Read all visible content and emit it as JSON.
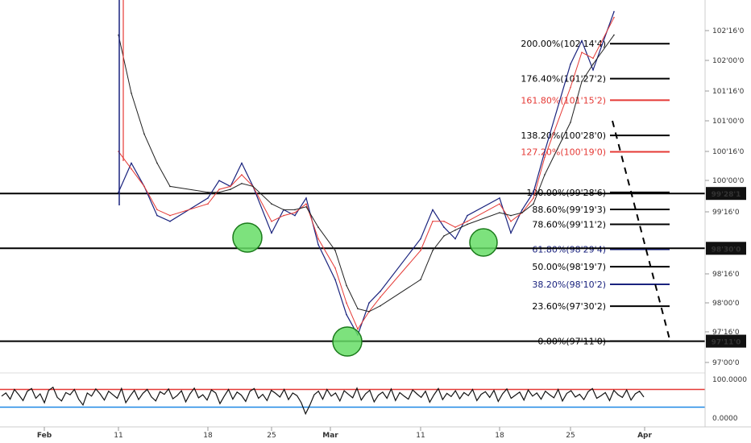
{
  "chart_data": {
    "type": "line",
    "title": "",
    "price_axis": {
      "ticks": [
        "102'16'0",
        "102'00'0",
        "101'16'0",
        "101'00'0",
        "100'16'0",
        "100'00'0",
        "99'16'0",
        "98'16'0",
        "98'00'0",
        "97'16'0",
        "97'00'0"
      ],
      "ylim": [
        96.84,
        103.2
      ]
    },
    "x_axis": {
      "ticks": [
        "Feb",
        "11",
        "18",
        "25",
        "Mar",
        "11",
        "18",
        "25",
        "Apr"
      ]
    },
    "horizontal_levels": [
      {
        "price": 99.879,
        "label": "99'28'1"
      },
      {
        "price": 98.9375,
        "label": "98'30'0"
      },
      {
        "price": 97.34375,
        "label": "97'11'0"
      }
    ],
    "fibonacci": [
      {
        "label": "200.00%(102'14'4)",
        "price": 102.45,
        "color": "#000000"
      },
      {
        "label": "176.40%(101'27'2)",
        "price": 101.85,
        "color": "#000000"
      },
      {
        "label": "161.80%(101'15'2)",
        "price": 101.48,
        "color": "#e53935"
      },
      {
        "label": "138.20%(100'28'0)",
        "price": 100.875,
        "color": "#000000"
      },
      {
        "label": "127.20%(100'19'0)",
        "price": 100.594,
        "color": "#e53935"
      },
      {
        "label": "100.00%(99'28'6)",
        "price": 99.898,
        "color": "#000000"
      },
      {
        "label": "88.60%(99'19'3)",
        "price": 99.605,
        "color": "#000000"
      },
      {
        "label": "78.60%(99'11'2)",
        "price": 99.35,
        "color": "#000000"
      },
      {
        "label": "61.80%(98'29'4)",
        "price": 98.92,
        "color": "#1a237e"
      },
      {
        "label": "50.00%(98'19'7)",
        "price": 98.621,
        "color": "#000000"
      },
      {
        "label": "38.20%(98'10'2)",
        "price": 98.32,
        "color": "#1a237e"
      },
      {
        "label": "23.60%(97'30'2)",
        "price": 97.945,
        "color": "#000000"
      },
      {
        "label": "0.00%(97'11'0)",
        "price": 97.344,
        "color": "#000000"
      }
    ],
    "series": [
      {
        "color": "#1a237e",
        "points": [
          [
            "Feb 11",
            99.9
          ],
          [
            "Feb 12",
            100.4
          ],
          [
            "Feb 13",
            100.0
          ],
          [
            "Feb 14",
            99.5
          ],
          [
            "Feb 15",
            99.4
          ],
          [
            "Feb 18",
            99.8
          ],
          [
            "Feb 19",
            100.1
          ],
          [
            "Feb 20",
            100.0
          ],
          [
            "Feb 21",
            100.4
          ],
          [
            "Feb 22",
            100.0
          ],
          [
            "Feb 25",
            99.2
          ],
          [
            "Feb 26",
            99.6
          ],
          [
            "Feb 27",
            99.5
          ],
          [
            "Feb 28",
            99.8
          ],
          [
            "Mar 01",
            99.0
          ],
          [
            "Mar 04",
            98.4
          ],
          [
            "Mar 05",
            97.8
          ],
          [
            "Mar 06",
            97.45
          ],
          [
            "Mar 07",
            98.0
          ],
          [
            "Mar 08",
            98.2
          ],
          [
            "Mar 11",
            99.1
          ],
          [
            "Mar 12",
            99.6
          ],
          [
            "Mar 13",
            99.3
          ],
          [
            "Mar 14",
            99.1
          ],
          [
            "Mar 15",
            99.5
          ],
          [
            "Mar 18",
            99.8
          ],
          [
            "Mar 19",
            99.2
          ],
          [
            "Mar 20",
            99.6
          ],
          [
            "Mar 21",
            99.9
          ],
          [
            "Mar 22",
            100.6
          ],
          [
            "Mar 25",
            102.1
          ],
          [
            "Mar 26",
            102.5
          ],
          [
            "Mar 27",
            102.0
          ],
          [
            "Mar 28",
            103.0
          ]
        ]
      },
      {
        "color": "#e53935",
        "points": [
          [
            "Feb 11",
            100.6
          ],
          [
            "Feb 12",
            100.3
          ],
          [
            "Feb 13",
            100.0
          ],
          [
            "Feb 14",
            99.6
          ],
          [
            "Feb 15",
            99.5
          ],
          [
            "Feb 18",
            99.7
          ],
          [
            "Feb 19",
            99.95
          ],
          [
            "Feb 20",
            100.0
          ],
          [
            "Feb 21",
            100.2
          ],
          [
            "Feb 22",
            100.0
          ],
          [
            "Feb 25",
            99.4
          ],
          [
            "Feb 26",
            99.5
          ],
          [
            "Feb 27",
            99.55
          ],
          [
            "Feb 28",
            99.7
          ],
          [
            "Mar 01",
            99.1
          ],
          [
            "Mar 04",
            98.6
          ],
          [
            "Mar 05",
            98.0
          ],
          [
            "Mar 06",
            97.55
          ],
          [
            "Mar 07",
            97.85
          ],
          [
            "Mar 08",
            98.1
          ],
          [
            "Mar 11",
            98.9
          ],
          [
            "Mar 12",
            99.4
          ],
          [
            "Mar 13",
            99.4
          ],
          [
            "Mar 14",
            99.3
          ],
          [
            "Mar 15",
            99.4
          ],
          [
            "Mar 18",
            99.7
          ],
          [
            "Mar 19",
            99.4
          ],
          [
            "Mar 20",
            99.55
          ],
          [
            "Mar 21",
            99.8
          ],
          [
            "Mar 22",
            100.5
          ],
          [
            "Mar 25",
            101.7
          ],
          [
            "Mar 26",
            102.3
          ],
          [
            "Mar 27",
            102.2
          ],
          [
            "Mar 28",
            102.9
          ]
        ]
      },
      {
        "color": "#222222",
        "points": [
          [
            "Feb 11",
            102.6
          ],
          [
            "Feb 12",
            101.6
          ],
          [
            "Feb 13",
            100.9
          ],
          [
            "Feb 14",
            100.4
          ],
          [
            "Feb 15",
            100.0
          ],
          [
            "Feb 18",
            99.9
          ],
          [
            "Feb 19",
            99.9
          ],
          [
            "Feb 20",
            99.95
          ],
          [
            "Feb 21",
            100.05
          ],
          [
            "Feb 22",
            100.0
          ],
          [
            "Feb 25",
            99.7
          ],
          [
            "Feb 26",
            99.6
          ],
          [
            "Feb 27",
            99.6
          ],
          [
            "Feb 28",
            99.65
          ],
          [
            "Mar 01",
            99.3
          ],
          [
            "Mar 04",
            98.9
          ],
          [
            "Mar 05",
            98.3
          ],
          [
            "Mar 06",
            97.9
          ],
          [
            "Mar 07",
            97.85
          ],
          [
            "Mar 08",
            97.95
          ],
          [
            "Mar 11",
            98.4
          ],
          [
            "Mar 12",
            98.9
          ],
          [
            "Mar 13",
            99.15
          ],
          [
            "Mar 14",
            99.25
          ],
          [
            "Mar 15",
            99.35
          ],
          [
            "Mar 18",
            99.55
          ],
          [
            "Mar 19",
            99.5
          ],
          [
            "Mar 20",
            99.55
          ],
          [
            "Mar 21",
            99.7
          ],
          [
            "Mar 22",
            100.2
          ],
          [
            "Mar 25",
            101.1
          ],
          [
            "Mar 26",
            101.8
          ],
          [
            "Mar 27",
            102.1
          ],
          [
            "Mar 28",
            102.6
          ]
        ]
      }
    ],
    "oscillator": {
      "ticks": [
        "100.0000",
        "0.0000"
      ],
      "levels": [
        {
          "value": 70,
          "color": "#e53935"
        },
        {
          "value": 30,
          "color": "#1e88e5"
        }
      ],
      "values": [
        55,
        62,
        48,
        70,
        58,
        45,
        66,
        72,
        50,
        60,
        40,
        68,
        75,
        52,
        44,
        63,
        58,
        70,
        48,
        35,
        62,
        55,
        71,
        60,
        46,
        66,
        58,
        50,
        72,
        40,
        55,
        68,
        47,
        61,
        70,
        53,
        44,
        65,
        59,
        71,
        49,
        56,
        67,
        42,
        60,
        73,
        51,
        58,
        46,
        69,
        62,
        38,
        55,
        70,
        48,
        64,
        57,
        43,
        66,
        72,
        50,
        59,
        45,
        68,
        61,
        53,
        70,
        47,
        62,
        56,
        40,
        15,
        35,
        58,
        66,
        48,
        70,
        55,
        62,
        44,
        67,
        59,
        51,
        73,
        46,
        60,
        68,
        42,
        57,
        64,
        50,
        71,
        45,
        63,
        55,
        48,
        69,
        60,
        52,
        66,
        41,
        58,
        72,
        47,
        61,
        54,
        67,
        49,
        63,
        56,
        70,
        45,
        59,
        65,
        52,
        68,
        43,
        60,
        71,
        50,
        57,
        64,
        46,
        69,
        55,
        62,
        48,
        66,
        58,
        51,
        70,
        44,
        61,
        67,
        53,
        59,
        47,
        65,
        72,
        50,
        56,
        63,
        45,
        68,
        58,
        52,
        69,
        46,
        60,
        66,
        53
      ]
    }
  }
}
